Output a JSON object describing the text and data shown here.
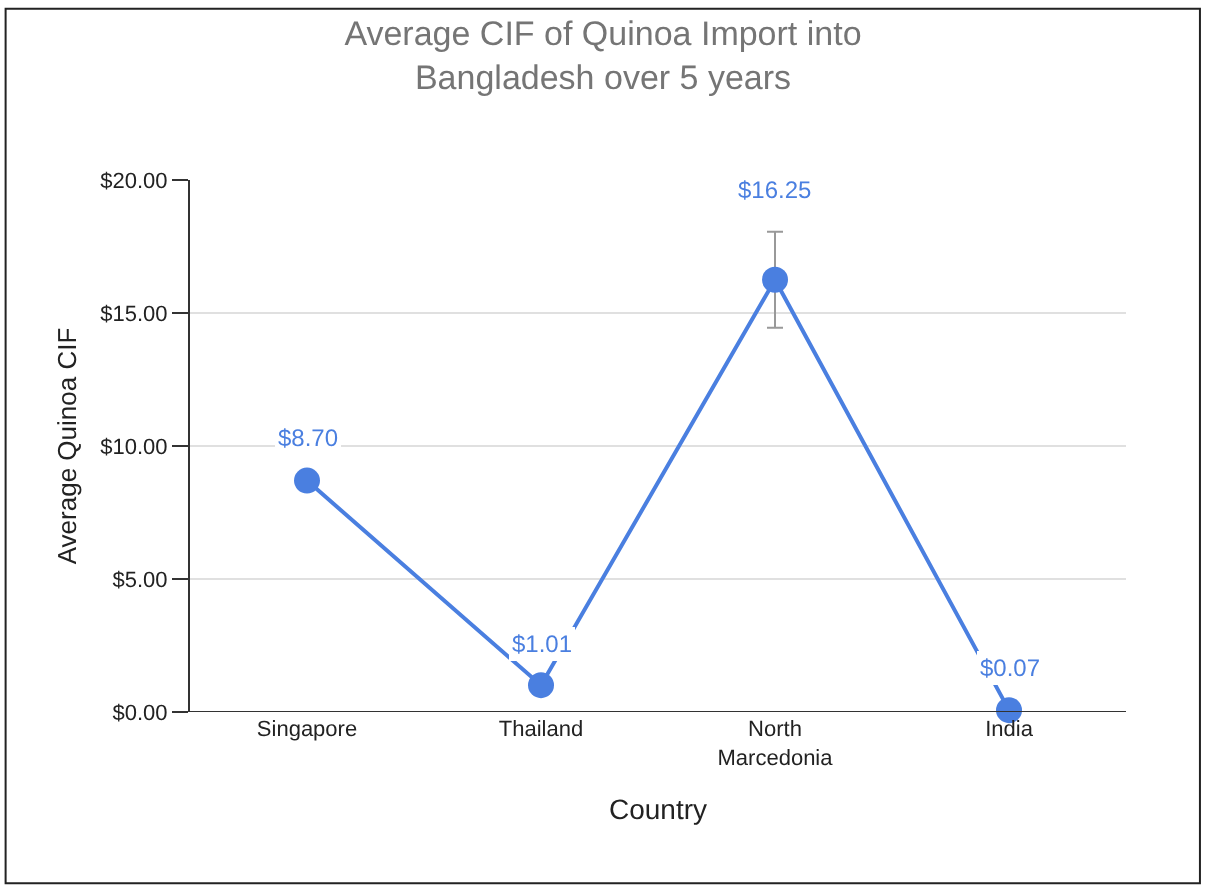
{
  "chart_data": {
    "type": "line",
    "title": "Average CIF of Quinoa Import into\nBangladesh over 5 years",
    "xlabel": "Country",
    "ylabel": "Average Quinoa CIF",
    "categories": [
      "Singapore",
      "Thailand",
      "North\nMarcedonia",
      "India"
    ],
    "values": [
      8.7,
      1.01,
      16.25,
      0.07
    ],
    "value_labels": [
      "$8.70",
      "$1.01",
      "$16.25",
      "$0.07"
    ],
    "errors": [
      null,
      null,
      1.8,
      null
    ],
    "color": "#4a7fe0",
    "ylim": [
      0,
      20
    ],
    "yticks": [
      {
        "value": 0,
        "label": "$0.00"
      },
      {
        "value": 5,
        "label": "$5.00"
      },
      {
        "value": 10,
        "label": "$10.00"
      },
      {
        "value": 15,
        "label": "$15.00"
      },
      {
        "value": 20,
        "label": "$20.00"
      }
    ],
    "grid": "y",
    "marker": "circle",
    "line_style": "solid",
    "legend": false
  }
}
